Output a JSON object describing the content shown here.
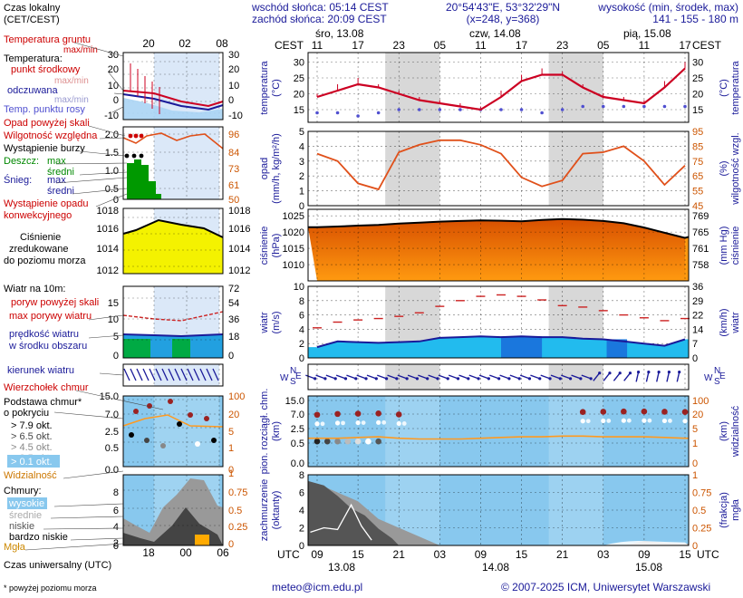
{
  "header": {
    "sunrise": "wschód słońca: 05:14 CEST",
    "sunset": "zachód słońca: 20:09 CEST",
    "coords": "20°54'43\"E, 53°32'29\"N",
    "grid": "(x=248, y=368)",
    "elevation_label": "wysokość (min, środek, max)",
    "elevation_values": "141 - 155 - 180 m"
  },
  "legend": {
    "local_time": "Czas lokalny",
    "local_time_zone": "(CET/CEST)",
    "local_ticks": [
      "20",
      "02",
      "08"
    ],
    "soil_temp": "Temperatura gruntu",
    "soil_temp_sub": "max/min",
    "temperature": "Temperatura:",
    "t_mid": "punkt środkowy",
    "t_range": "max/min",
    "apparent": "odczuwana",
    "apparent_range": "max/min",
    "dew_point": "Temp. punktu rosy",
    "precip_over": "Opad powyżej skali",
    "humidity": "Wilgotność względna",
    "storm": "Wystąpienie burzy",
    "rain": "Deszcz:",
    "rain_max": "max",
    "rain_mean": "średni",
    "snow": "Śnieg:",
    "snow_max": "max",
    "snow_mean": "średni",
    "conv_1": "Wystąpienie opadu",
    "conv_2": "konwekcyjnego",
    "pressure_1": "Ciśnienie",
    "pressure_2": "zredukowane",
    "pressure_3": "do poziomu morza",
    "wind_10m": "Wiatr na 10m:",
    "gust_over": "poryw powyżej skali",
    "gust_max": "max porywy wiatru",
    "wind_mean_1": "prędkość wiatru",
    "wind_mean_2": "w środku obszaru",
    "wind_dir": "kierunek wiatru",
    "cloud_top": "Wierzchołek chmur",
    "cloud_base_1": "Podstawa chmur*",
    "cloud_base_2": "o pokryciu",
    "okt": [
      "> 7.9 okt.",
      "> 6.5 okt.",
      "> 4.5 okt.",
      "> 2.5 okt.",
      "> 0.1 okt."
    ],
    "visibility": "Widzialność",
    "clouds": "Chmury:",
    "high": "wysokie",
    "middle": "średnie",
    "low": "niskie",
    "very_low": "bardzo niskie",
    "fog": "Mgła",
    "utc_label": "Czas uniwersalny (UTC)",
    "utc_ticks": [
      "18",
      "00",
      "06"
    ],
    "footnote": "* powyżej poziomu morza"
  },
  "main": {
    "tz_left": "CEST",
    "tz_right": "CEST",
    "tz_left_bottom": "UTC",
    "tz_right_bottom": "UTC",
    "days_top": [
      "śro, 13.08",
      "czw, 14.08",
      "pią, 15.08"
    ],
    "hours_local": [
      "11",
      "17",
      "23",
      "05",
      "11",
      "17",
      "23",
      "05",
      "11",
      "17"
    ],
    "hours_utc": [
      "09",
      "15",
      "21",
      "03",
      "09",
      "15",
      "21",
      "03",
      "09",
      "15"
    ],
    "days_bottom": [
      "13.08",
      "14.08",
      "15.08"
    ],
    "panels": {
      "temp": {
        "left": "temperatura",
        "left_unit": "(°C)",
        "right": "temperatura",
        "right_unit": "(°C)",
        "ticks": [
          "30",
          "25",
          "20",
          "15"
        ]
      },
      "precip": {
        "left": "opad",
        "left_unit": "(mm/h, kg/m²/h)",
        "right": "wilgotność wzgl.",
        "right_unit": "(%)",
        "ticks_left": [
          "5",
          "4",
          "3",
          "2",
          "1",
          "0"
        ],
        "ticks_right": [
          "95",
          "85",
          "75",
          "65",
          "55",
          "45"
        ]
      },
      "pressure": {
        "left": "ciśnienie",
        "left_unit": "(hPa)",
        "right": "ciśnienie",
        "right_unit": "(mm Hg)",
        "ticks_left": [
          "1025",
          "1020",
          "1015",
          "1010"
        ],
        "ticks_right": [
          "769",
          "765",
          "761",
          "758"
        ]
      },
      "wind": {
        "left": "wiatr",
        "left_unit": "(m/s)",
        "right": "wiatr",
        "right_unit": "(km/h)",
        "ticks_left": [
          "10",
          "8",
          "6",
          "4",
          "2",
          "0"
        ],
        "ticks_right": [
          "36",
          "29",
          "22",
          "14",
          "7",
          "0"
        ]
      },
      "cloud": {
        "left": "pion. rozciągł. chm.",
        "left_unit": "(km)",
        "right": "widzialność",
        "right_unit": "(km)",
        "ticks_left": [
          "15.0",
          "7.0",
          "2.5",
          "0.5",
          "0.0"
        ],
        "ticks_right": [
          "100",
          "20",
          "5",
          "1",
          "0"
        ]
      },
      "cover": {
        "left": "zachmurzenie",
        "left_unit": "(oktanty)",
        "right": "mgła",
        "right_unit": "(frakcja)",
        "ticks_left": [
          "8",
          "6",
          "4",
          "2",
          "0"
        ],
        "ticks_right": [
          "1",
          "0.75",
          "0.5",
          "0.25",
          "0"
        ]
      }
    }
  },
  "left_ticks": {
    "temp": [
      "30",
      "20",
      "10",
      "0",
      "-10"
    ],
    "precip": [
      "2.0",
      "1.5",
      "1.0",
      "0.5",
      "0"
    ],
    "precip_right": [
      "96",
      "84",
      "73",
      "61",
      "50"
    ],
    "pressure": [
      "1018",
      "1016",
      "1014",
      "1012"
    ],
    "wind": [
      "15",
      "10",
      "5",
      "0"
    ],
    "wind_right": [
      "72",
      "54",
      "36",
      "18",
      "0"
    ],
    "cloud": [
      "15.0",
      "7.0",
      "2.5",
      "0.5",
      "0.0"
    ],
    "cloud_right": [
      "100",
      "20",
      "5",
      "1",
      "0"
    ],
    "cover": [
      "8",
      "6",
      "4",
      "2",
      "0"
    ],
    "cover_right": [
      "1",
      "0.75",
      "0.5",
      "0.25",
      "0"
    ]
  },
  "footer": {
    "email": "meteo@icm.edu.pl",
    "copyright": "© 2007-2025 ICM, Uniwersytet Warszawski"
  },
  "colors": {
    "night": "#d8d8d8",
    "temp": "#cc0022",
    "humidity": "#e0501a",
    "dew": "#5050d0",
    "wind": "#1a66cc",
    "cloud_bg": "#88c8ee"
  },
  "chart_data": [
    {
      "type": "line",
      "title": "temperatura",
      "ylabel": "(°C)",
      "ylim": [
        11,
        33
      ],
      "hours": [
        0,
        3,
        6,
        9,
        12,
        15,
        18,
        21,
        24,
        27,
        30,
        33,
        36,
        39,
        42,
        45,
        48,
        51,
        54
      ],
      "series": [
        {
          "name": "temperatura",
          "values": [
            19,
            21,
            23,
            22,
            20,
            18,
            17,
            16,
            15,
            19,
            24,
            26,
            26,
            22,
            19,
            18,
            17,
            22,
            28
          ]
        },
        {
          "name": "temperatura max",
          "values": [
            20,
            23,
            25,
            23,
            21,
            19,
            18,
            17,
            16,
            21,
            26,
            28,
            27,
            23,
            20,
            19,
            18,
            24,
            30
          ]
        },
        {
          "name": "temp. punktu rosy",
          "values": [
            14,
            14,
            13,
            14,
            15,
            15,
            15,
            15,
            15,
            15,
            15,
            14,
            15,
            16,
            16,
            16,
            16,
            16,
            16
          ]
        }
      ]
    },
    {
      "type": "line",
      "title": "wilgotność względna",
      "ylabel": "(%)",
      "ylim": [
        45,
        95
      ],
      "hours": [
        0,
        3,
        6,
        9,
        12,
        15,
        18,
        21,
        24,
        27,
        30,
        33,
        36,
        39,
        42,
        45,
        48,
        51,
        54
      ],
      "series": [
        {
          "name": "wilgotność",
          "values": [
            80,
            75,
            60,
            56,
            81,
            86,
            89,
            89,
            86,
            80,
            64,
            58,
            62,
            80,
            81,
            85,
            75,
            59,
            72
          ]
        },
        {
          "name": "opad",
          "values": [
            0,
            0,
            0,
            0,
            0,
            0,
            0,
            0,
            0,
            0,
            0,
            0,
            0,
            0,
            0,
            0,
            0,
            0,
            0
          ]
        }
      ]
    },
    {
      "type": "area",
      "title": "ciśnienie",
      "ylabel": "(hPa)",
      "ylim": [
        1005,
        1027
      ],
      "hours": [
        0,
        3,
        6,
        9,
        12,
        15,
        18,
        21,
        24,
        27,
        30,
        33,
        36,
        39,
        42,
        45,
        48,
        51,
        54
      ],
      "series": [
        {
          "name": "ciśnienie",
          "values": [
            1021.5,
            1021.7,
            1022,
            1022.2,
            1022.6,
            1022.9,
            1023.2,
            1023.4,
            1023.6,
            1023.5,
            1023.3,
            1023.7,
            1024,
            1023.8,
            1023.4,
            1022.7,
            1021.4,
            1019.8,
            1018.2
          ]
        }
      ]
    },
    {
      "type": "area",
      "title": "wiatr",
      "ylabel": "(m/s)",
      "ylim": [
        0,
        10
      ],
      "hours": [
        0,
        3,
        6,
        9,
        12,
        15,
        18,
        21,
        24,
        27,
        30,
        33,
        36,
        39,
        42,
        45,
        48,
        51,
        54
      ],
      "series": [
        {
          "name": "prędkość wiatru",
          "values": [
            1.5,
            2.3,
            2.2,
            2.1,
            2.2,
            2.3,
            2.8,
            2.9,
            3.0,
            2.9,
            3.0,
            2.9,
            2.9,
            2.7,
            2.6,
            2.3,
            2.0,
            1.7,
            2.6
          ]
        },
        {
          "name": "porywy wiatru",
          "values": [
            4.2,
            5.0,
            5.3,
            5.5,
            5.8,
            6.3,
            7.2,
            8.0,
            8.6,
            8.8,
            8.6,
            8.1,
            7.3,
            7.1,
            6.6,
            6.0,
            5.6,
            5.2,
            5.5
          ]
        }
      ]
    },
    {
      "type": "scatter",
      "title": "pion. rozciągł. chm.",
      "ylabel": "(km)",
      "ylim": [
        0,
        15
      ],
      "hours": [
        0,
        3,
        6,
        9,
        12,
        15,
        18,
        21,
        24,
        27,
        30,
        33,
        36,
        39,
        42,
        45,
        48,
        51,
        54
      ],
      "series": [
        {
          "name": "wierzchołek chmur",
          "values": [
            7.5,
            7.8,
            7.9,
            8.0,
            7.6,
            null,
            null,
            null,
            null,
            null,
            null,
            null,
            null,
            8.6,
            8.7,
            8.8,
            8.8,
            8.7,
            8.6
          ]
        },
        {
          "name": "widzialność",
          "values": [
            2.0,
            2.0,
            2.1,
            2.2,
            2.0,
            1.9,
            1.9,
            1.9,
            2.0,
            2.1,
            2.2,
            2.2,
            2.3,
            2.3,
            2.2,
            2.2,
            2.2,
            2.1,
            2.0
          ]
        }
      ]
    },
    {
      "type": "area",
      "title": "zachmurzenie",
      "ylabel": "(oktanty)",
      "ylim": [
        0,
        8
      ],
      "hours": [
        0,
        3,
        6,
        9,
        12,
        15,
        18,
        21,
        24,
        27,
        30,
        33,
        36,
        39,
        42,
        45,
        48,
        51,
        54
      ],
      "series": [
        {
          "name": "chmury niskie",
          "values": [
            7,
            6,
            5,
            3,
            2,
            1,
            0,
            0,
            0,
            0,
            0,
            0,
            0,
            0,
            0,
            0,
            0.5,
            0.3,
            0.2
          ]
        },
        {
          "name": "mgła",
          "values": [
            0,
            0,
            0,
            0,
            0,
            0,
            0,
            0,
            0,
            0,
            0,
            0,
            0,
            0,
            0,
            0,
            0,
            0,
            0
          ]
        }
      ]
    }
  ]
}
